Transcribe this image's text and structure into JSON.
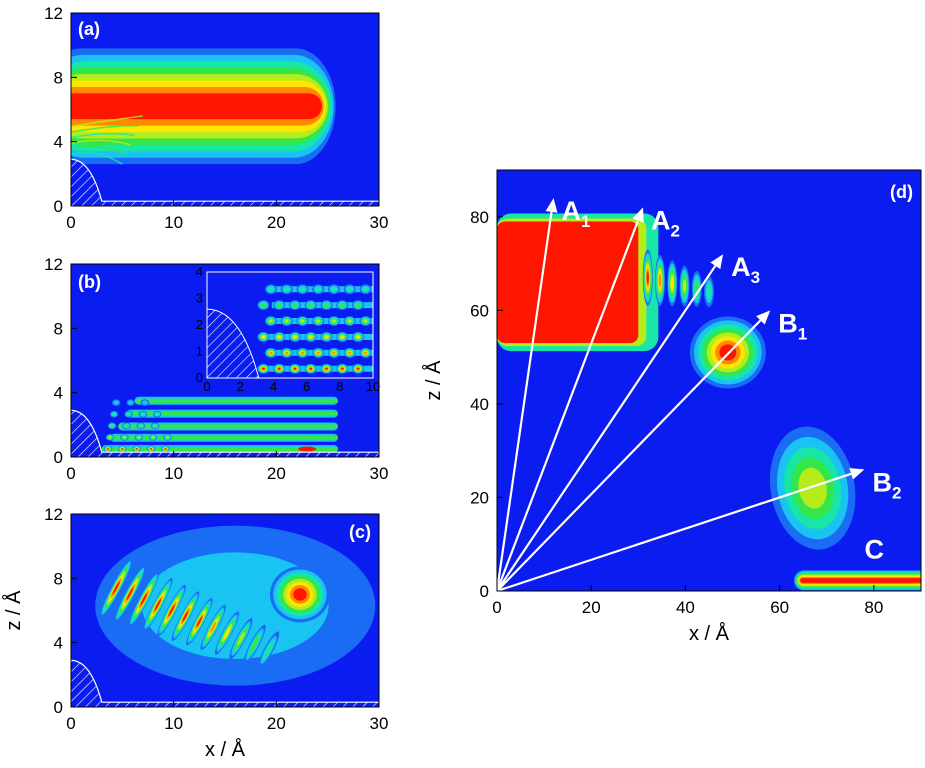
{
  "colors": {
    "background": "#0a1cf0",
    "colormap": [
      "#0a1cf0",
      "#1b6cf5",
      "#19c4f2",
      "#18e6a6",
      "#33e64a",
      "#b6ec1c",
      "#ffe600",
      "#ff8a00",
      "#ff1500"
    ],
    "substrate_hatch": "#ffffff",
    "arrows": "#ffffff"
  },
  "chart_data": [
    {
      "id": "a",
      "type": "heatmap",
      "panel_label": "(a)",
      "xlim": [
        0,
        30
      ],
      "ylim": [
        0,
        12
      ],
      "x_ticks": [
        "0",
        "10",
        "20",
        "30"
      ],
      "y_ticks": [
        "0",
        "4",
        "8",
        "12"
      ],
      "xlabel": "",
      "ylabel": "",
      "features": [
        {
          "kind": "band",
          "x": [
            0,
            25
          ],
          "z_center": 6.2,
          "z_halfwidth": 3.6,
          "peak_level": 8
        }
      ]
    },
    {
      "id": "b",
      "type": "heatmap",
      "panel_label": "(b)",
      "xlim": [
        0,
        30
      ],
      "ylim": [
        0,
        12
      ],
      "x_ticks": [
        "0",
        "10",
        "20",
        "30"
      ],
      "y_ticks": [
        "0",
        "4",
        "8",
        "12"
      ],
      "xlabel": "",
      "ylabel": "",
      "inset": {
        "xlim": [
          0,
          10
        ],
        "ylim": [
          0,
          4
        ],
        "x_ticks": [
          "0",
          "2",
          "4",
          "6",
          "8",
          "10"
        ],
        "y_ticks": [
          "0",
          "1",
          "2",
          "3",
          "4"
        ]
      },
      "features": [
        {
          "kind": "stripes",
          "x": [
            3,
            25
          ],
          "z_levels": [
            0.5,
            1.2,
            1.9,
            2.7,
            3.5
          ],
          "peak_level": 8
        }
      ]
    },
    {
      "id": "c",
      "type": "heatmap",
      "panel_label": "(c)",
      "xlim": [
        0,
        30
      ],
      "ylim": [
        0,
        12
      ],
      "x_ticks": [
        "0",
        "10",
        "20",
        "30"
      ],
      "y_ticks": [
        "0",
        "4",
        "8",
        "12"
      ],
      "xlabel": "x / Å",
      "ylabel": "z / Å",
      "features": [
        {
          "kind": "oblique_fringes",
          "x": [
            2,
            16
          ],
          "z": [
            1,
            11
          ],
          "peak_level": 8
        },
        {
          "kind": "spot",
          "x": 22.3,
          "z": 7.0,
          "peak_level": 8
        }
      ]
    },
    {
      "id": "d",
      "type": "heatmap",
      "panel_label": "(d)",
      "xlim": [
        0,
        90
      ],
      "ylim": [
        0,
        90
      ],
      "x_ticks": [
        "0",
        "20",
        "40",
        "60",
        "80"
      ],
      "y_ticks": [
        "0",
        "20",
        "40",
        "60",
        "80"
      ],
      "xlabel": "x / Å",
      "ylabel": "z / Å",
      "features": [
        {
          "kind": "lobe",
          "x": [
            0,
            30
          ],
          "z": [
            53,
            79
          ],
          "peak_level": 8
        },
        {
          "kind": "spot",
          "x": 49,
          "z": 51,
          "peak_level": 8
        },
        {
          "kind": "spot",
          "x": 67,
          "z": 22,
          "peak_level": 5
        },
        {
          "kind": "spot",
          "x": 80,
          "z": 2,
          "peak_level": 8
        }
      ],
      "arrows": [
        {
          "label": "A",
          "subscript": "1",
          "x": 12,
          "z": 84
        },
        {
          "label": "A",
          "subscript": "2",
          "x": 31,
          "z": 82
        },
        {
          "label": "A",
          "subscript": "3",
          "x": 48,
          "z": 72
        },
        {
          "label": "B",
          "subscript": "1",
          "x": 58,
          "z": 60
        },
        {
          "label": "B",
          "subscript": "2",
          "x": 78,
          "z": 26
        }
      ],
      "annotations": [
        {
          "text": "C",
          "x": 78,
          "z": 7
        }
      ]
    }
  ]
}
